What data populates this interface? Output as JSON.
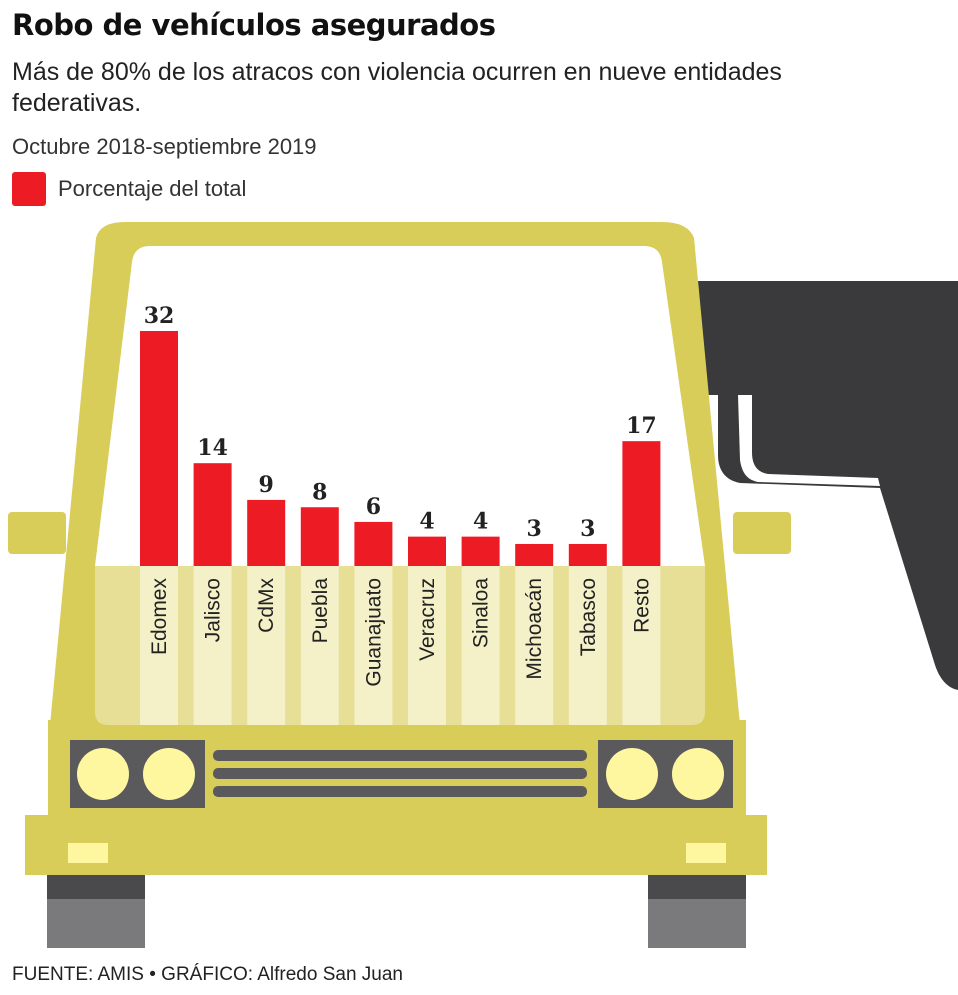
{
  "title": "Robo de vehículos asegurados",
  "subtitle": "Más de 80% de los atracos con violencia ocurren en nueve entidades federativas.",
  "period": "Octubre 2018-septiembre 2019",
  "legend": {
    "label": "Porcentaje del total"
  },
  "source": "FUENTE: AMIS • GRÁFICO: Alfredo San Juan",
  "colors": {
    "bar": "#ed1c24",
    "car_body": "#d9cd5a",
    "car_light": "#e6df95",
    "gun": "#3a3a3c"
  },
  "chart_data": {
    "type": "bar",
    "categories": [
      "Edomex",
      "Jalisco",
      "CdMx",
      "Puebla",
      "Guanajuato",
      "Veracruz",
      "Sinaloa",
      "Michoacán",
      "Tabasco",
      "Resto"
    ],
    "series": [
      {
        "name": "Porcentaje del total",
        "values": [
          32,
          14,
          9,
          8,
          6,
          4,
          4,
          3,
          3,
          17
        ]
      }
    ],
    "ylim": [
      0,
      32
    ],
    "grid": false,
    "legend": "top-left"
  }
}
